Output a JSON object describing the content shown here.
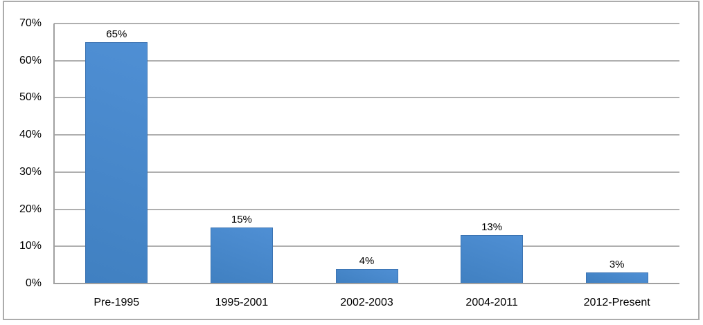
{
  "chart_data": {
    "type": "bar",
    "title": "",
    "categories": [
      "Pre-1995",
      "1995-2001",
      "2002-2003",
      "2004-2011",
      "2012-Present"
    ],
    "values": [
      65,
      15,
      4,
      13,
      3
    ],
    "data_labels": [
      "65%",
      "15%",
      "4%",
      "13%",
      "3%"
    ],
    "y_axis": {
      "min": 0,
      "max": 70,
      "step": 10,
      "tick_labels": [
        "0%",
        "10%",
        "20%",
        "30%",
        "40%",
        "50%",
        "60%",
        "70%"
      ]
    },
    "grid": true,
    "legend": false,
    "layout_hints": {
      "gridlines": "horizontal, every 10%",
      "data_labels_position": "above bars",
      "legend_position": "none"
    },
    "colors": {
      "bar_fill_top": "#4F8FD4",
      "bar_fill_bottom": "#4080C1",
      "bar_border": "#3B73B2",
      "gridline": "#AFAFAF",
      "axis_line": "#A0A0A0",
      "chart_border": "#ACACAC",
      "label_text": "#000000",
      "background": "#FFFFFF"
    }
  }
}
